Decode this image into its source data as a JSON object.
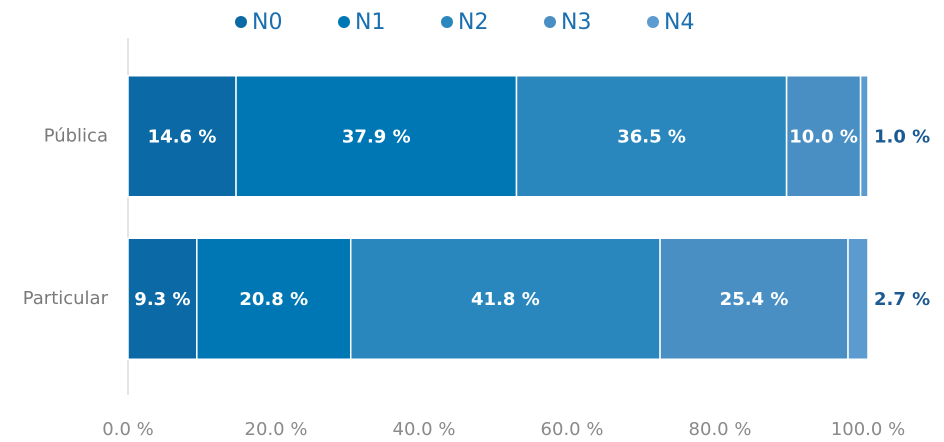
{
  "chart_data": {
    "type": "stacked-barh",
    "categories": [
      "Pública",
      "Particular"
    ],
    "series": [
      {
        "name": "N0",
        "color": "#0b6aa6",
        "values": [
          14.6,
          9.3
        ],
        "value_labels": [
          "14.6 %",
          "9.3 %"
        ]
      },
      {
        "name": "N1",
        "color": "#0077b5",
        "values": [
          37.9,
          20.8
        ],
        "value_labels": [
          "37.9 %",
          "20.8 %"
        ]
      },
      {
        "name": "N2",
        "color": "#2a87be",
        "values": [
          36.5,
          41.8
        ],
        "value_labels": [
          "36.5 %",
          "41.8 %"
        ]
      },
      {
        "name": "N3",
        "color": "#4a8fc3",
        "values": [
          10.0,
          25.4
        ],
        "value_labels": [
          "10.0 %",
          "25.4 %"
        ]
      },
      {
        "name": "N4",
        "color": "#5b9bd0",
        "values": [
          1.0,
          2.7
        ],
        "value_labels": [
          "1.0 %",
          "2.7 %"
        ]
      }
    ],
    "xlim": [
      0,
      100
    ],
    "xticks": [
      {
        "value": 0,
        "label": "0.0 %"
      },
      {
        "value": 20,
        "label": "20.0 %"
      },
      {
        "value": 40,
        "label": "40.0 %"
      },
      {
        "value": 60,
        "label": "60.0 %"
      },
      {
        "value": 80,
        "label": "80.0 %"
      },
      {
        "value": 100,
        "label": "100.0 %"
      }
    ],
    "legend": "top"
  }
}
